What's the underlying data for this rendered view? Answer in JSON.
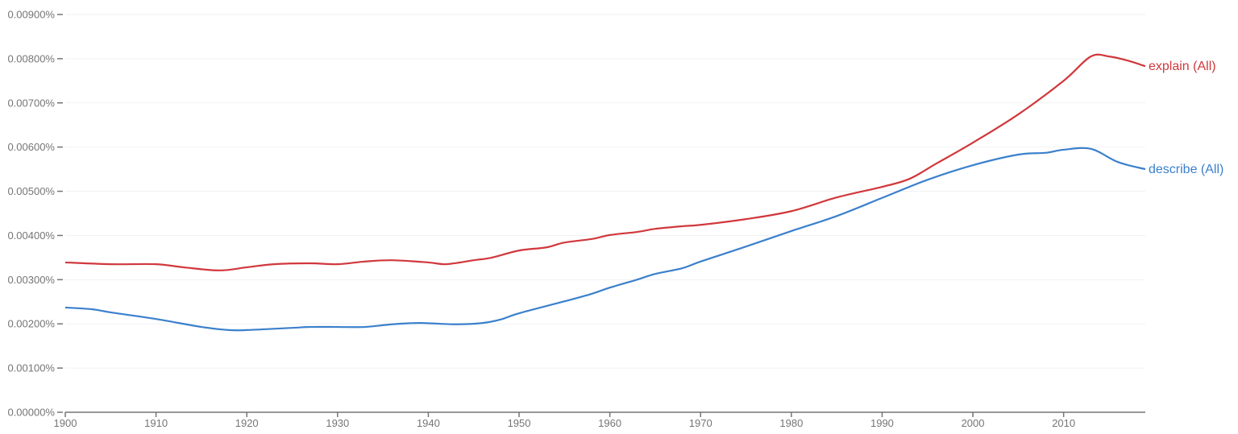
{
  "chart_data": {
    "type": "line",
    "title": "",
    "xlabel": "",
    "ylabel": "",
    "xlim": [
      1900,
      2019
    ],
    "ylim": [
      0,
      0.009
    ],
    "grid": true,
    "legend": "inline-right",
    "x_ticks": [
      "1900",
      "1910",
      "1920",
      "1930",
      "1940",
      "1950",
      "1960",
      "1970",
      "1980",
      "1990",
      "2000",
      "2010"
    ],
    "y_ticks": [
      "0.00000%",
      "0.00100%",
      "0.00200%",
      "0.00300%",
      "0.00400%",
      "0.00500%",
      "0.00600%",
      "0.00700%",
      "0.00800%",
      "0.00900%"
    ],
    "series": [
      {
        "name": "explain (All)",
        "color": "#d0383c",
        "x": [
          1900,
          1905,
          1910,
          1913,
          1917,
          1920,
          1923,
          1927,
          1930,
          1933,
          1936,
          1940,
          1942,
          1945,
          1947,
          1950,
          1953,
          1955,
          1958,
          1960,
          1963,
          1965,
          1968,
          1970,
          1975,
          1980,
          1985,
          1990,
          1993,
          1996,
          2000,
          2005,
          2010,
          2013,
          2015,
          2017,
          2019
        ],
        "y": [
          0.00339,
          0.00335,
          0.00335,
          0.00328,
          0.00321,
          0.00328,
          0.00335,
          0.00337,
          0.00335,
          0.00341,
          0.00344,
          0.00339,
          0.00335,
          0.00344,
          0.0035,
          0.00366,
          0.00373,
          0.00384,
          0.00392,
          0.00401,
          0.00408,
          0.00415,
          0.00421,
          0.00424,
          0.00437,
          0.00455,
          0.00486,
          0.0051,
          0.00528,
          0.00563,
          0.0061,
          0.00674,
          0.0075,
          0.00805,
          0.00805,
          0.00796,
          0.00783
        ]
      },
      {
        "name": "describe (All)",
        "color": "#3b80cc",
        "x": [
          1900,
          1903,
          1905,
          1910,
          1915,
          1918,
          1920,
          1925,
          1927,
          1930,
          1933,
          1936,
          1939,
          1943,
          1946,
          1948,
          1950,
          1955,
          1958,
          1960,
          1963,
          1965,
          1968,
          1970,
          1975,
          1980,
          1985,
          1990,
          1995,
          2000,
          2005,
          2008,
          2010,
          2013,
          2016,
          2019
        ],
        "y": [
          0.00237,
          0.00233,
          0.00226,
          0.00211,
          0.00193,
          0.00186,
          0.00186,
          0.00191,
          0.00193,
          0.00193,
          0.00193,
          0.00199,
          0.00202,
          0.00199,
          0.00202,
          0.0021,
          0.00224,
          0.00251,
          0.00268,
          0.00282,
          0.003,
          0.00313,
          0.00326,
          0.00341,
          0.00375,
          0.0041,
          0.00444,
          0.00485,
          0.00526,
          0.00559,
          0.00583,
          0.00587,
          0.00594,
          0.00596,
          0.00566,
          0.0055
        ]
      }
    ]
  }
}
